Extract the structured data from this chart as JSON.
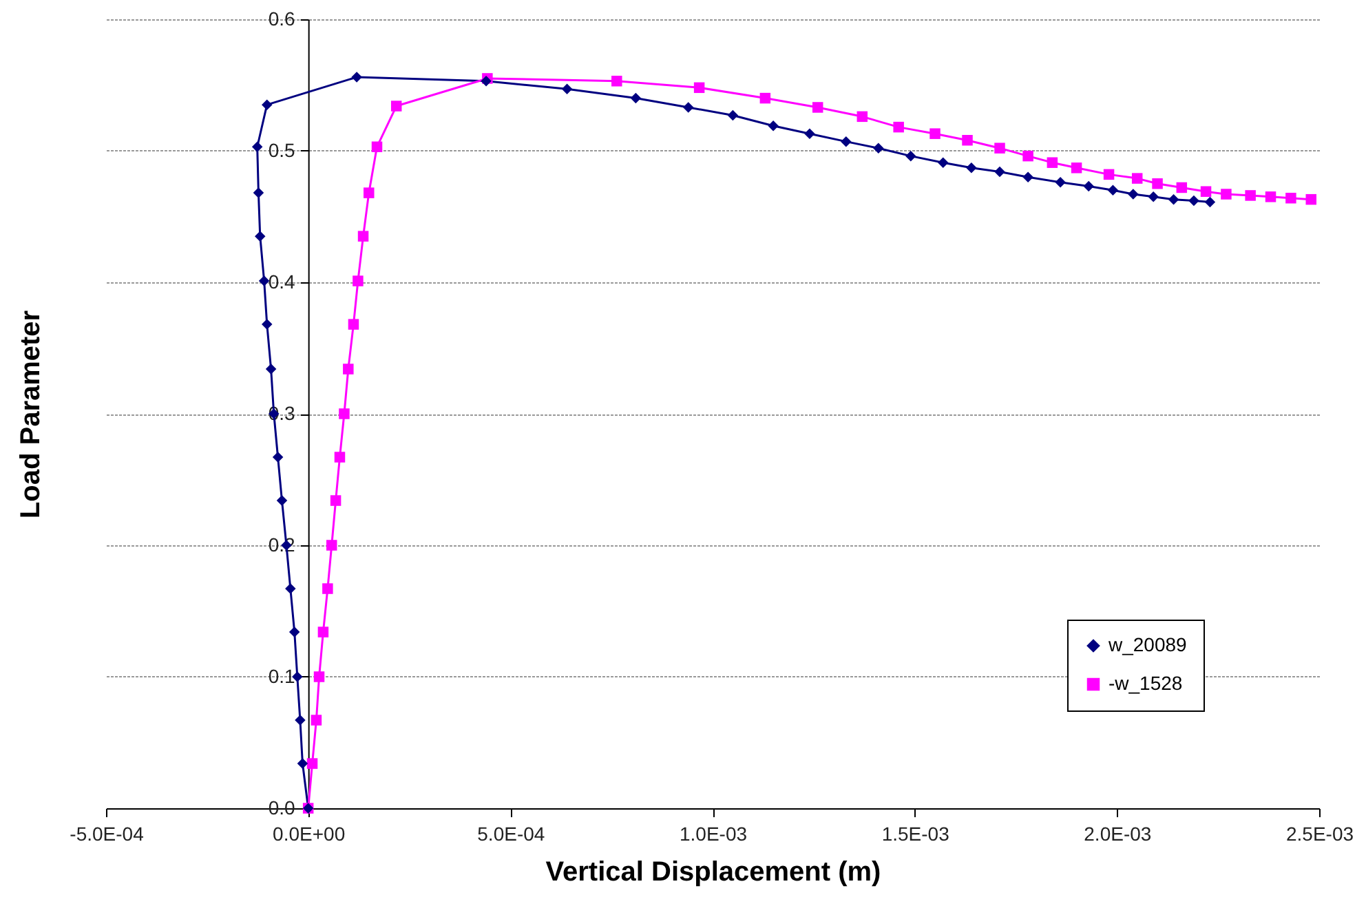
{
  "chart_data": {
    "type": "line",
    "xlabel": "Vertical Displacement (m)",
    "ylabel": "Load Parameter",
    "xlim": [
      -0.0005,
      0.0025
    ],
    "ylim": [
      0,
      0.6
    ],
    "xticks": [
      {
        "value": -0.0005,
        "label": "-5.0E-04"
      },
      {
        "value": 0,
        "label": "0.0E+00"
      },
      {
        "value": 0.0005,
        "label": "5.0E-04"
      },
      {
        "value": 0.001,
        "label": "1.0E-03"
      },
      {
        "value": 0.0015,
        "label": "1.5E-03"
      },
      {
        "value": 0.002,
        "label": "2.0E-03"
      },
      {
        "value": 0.0025,
        "label": "2.5E-03"
      }
    ],
    "yticks": [
      {
        "value": 0,
        "label": "0.0"
      },
      {
        "value": 0.1,
        "label": "0.1"
      },
      {
        "value": 0.2,
        "label": "0.2"
      },
      {
        "value": 0.3,
        "label": "0.3"
      },
      {
        "value": 0.4,
        "label": "0.4"
      },
      {
        "value": 0.5,
        "label": "0.5"
      },
      {
        "value": 0.6,
        "label": "0.6"
      }
    ],
    "grid": "y",
    "legend": "bottom right",
    "line_style": "solid",
    "series": [
      {
        "name": "w_20089",
        "color": "#000080",
        "marker": "diamond",
        "x": [
          0,
          -1.4e-05,
          -2e-05,
          -2.7e-05,
          -3.4e-05,
          -4.4e-05,
          -5.4e-05,
          -6.5e-05,
          -7.5e-05,
          -8.5e-05,
          -9.2e-05,
          -0.000102,
          -0.000109,
          -0.000119,
          -0.000123,
          -0.000126,
          -0.000102,
          0.00012,
          0.00044,
          0.00064,
          0.00081,
          0.00094,
          0.00105,
          0.00115,
          0.00124,
          0.00133,
          0.00141,
          0.00149,
          0.00157,
          0.00164,
          0.00171,
          0.00178,
          0.00186,
          0.00193,
          0.00199,
          0.00204,
          0.00209,
          0.00214,
          0.00219,
          0.00223
        ],
        "values": [
          0,
          0.034,
          0.067,
          0.1,
          0.134,
          0.167,
          0.2,
          0.234,
          0.267,
          0.3,
          0.334,
          0.368,
          0.401,
          0.435,
          0.468,
          0.503,
          0.535,
          0.556,
          0.553,
          0.547,
          0.54,
          0.533,
          0.527,
          0.519,
          0.513,
          0.507,
          0.502,
          0.496,
          0.491,
          0.487,
          0.484,
          0.48,
          0.476,
          0.473,
          0.47,
          0.467,
          0.465,
          0.463,
          0.462,
          0.461
        ]
      },
      {
        "name": "-w_1528",
        "color": "#ff00ff",
        "marker": "square",
        "x": [
          0,
          1e-05,
          2e-05,
          2.7e-05,
          3.7e-05,
          4.8e-05,
          5.8e-05,
          6.8e-05,
          7.8e-05,
          8.9e-05,
          9.9e-05,
          0.000112,
          0.000123,
          0.000136,
          0.00015,
          0.00017,
          0.000218,
          0.000443,
          0.000763,
          0.000967,
          0.00113,
          0.00126,
          0.00137,
          0.00146,
          0.00155,
          0.00163,
          0.00171,
          0.00178,
          0.00184,
          0.0019,
          0.00198,
          0.00205,
          0.0021,
          0.00216,
          0.00222,
          0.00227,
          0.00233,
          0.00238,
          0.00243,
          0.00248
        ],
        "values": [
          0,
          0.034,
          0.067,
          0.1,
          0.134,
          0.167,
          0.2,
          0.234,
          0.267,
          0.3,
          0.334,
          0.368,
          0.401,
          0.435,
          0.468,
          0.503,
          0.534,
          0.555,
          0.553,
          0.548,
          0.54,
          0.533,
          0.526,
          0.518,
          0.513,
          0.508,
          0.502,
          0.496,
          0.491,
          0.487,
          0.482,
          0.479,
          0.475,
          0.472,
          0.469,
          0.467,
          0.466,
          0.465,
          0.464,
          0.463
        ]
      }
    ]
  }
}
